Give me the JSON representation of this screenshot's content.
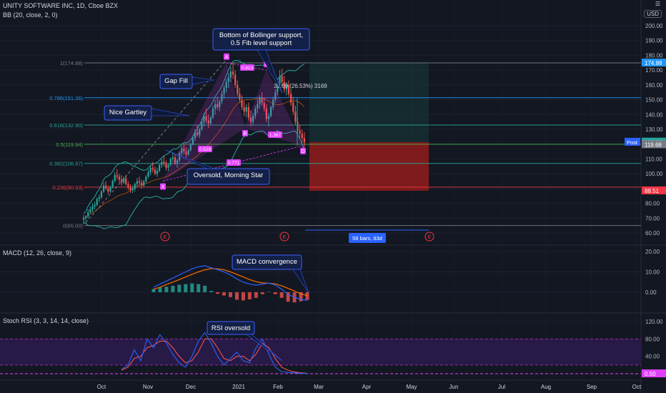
{
  "header": {
    "symbol_line": "UNITY SOFTWARE INC, 1D, Cboe BZX",
    "bb_label": "BB (20, close, 2, 0)",
    "currency": "USD",
    "macd_label": "MACD (12, 26, close, 9)",
    "rsi_label": "Stoch RSI (3, 3, 14, 14, close)"
  },
  "colors": {
    "background": "#131722",
    "grid": "#1e222d",
    "up": "#26a69a",
    "down": "#ef5350",
    "pattern_label": "#e040fb",
    "annotation_bg": "#132047",
    "annotation_border": "#3c5fff",
    "bb_line": "#26a69a",
    "macd_line": "#2962ff",
    "signal_line": "#ff6d00",
    "stoch_k": "#2962ff",
    "stoch_d": "#ef5350",
    "rsi_band": "#2a1b4a",
    "reward_box": "#163a3a",
    "risk_box": "#8b1c1c"
  },
  "chart_data": [
    {
      "type": "candlestick",
      "title": "UNITY SOFTWARE INC, 1D, Cboe BZX",
      "x_ticks": [
        "Oct",
        "Nov",
        "Dec",
        "2021",
        "Feb",
        "Mar",
        "Apr",
        "May",
        "Jun",
        "Jul",
        "Aug",
        "Sep",
        "Oct"
      ],
      "y_ticks": [
        60,
        70,
        80,
        90,
        100,
        110,
        120,
        130,
        140,
        150,
        160,
        170,
        180,
        190,
        200
      ],
      "ylim": [
        56,
        212
      ],
      "candles": [
        [
          69,
          72,
          66,
          70
        ],
        [
          70,
          72,
          68,
          71
        ],
        [
          71,
          76,
          70,
          74
        ],
        [
          74,
          78,
          73,
          76
        ],
        [
          76,
          80,
          74,
          78
        ],
        [
          78,
          81,
          76,
          79
        ],
        [
          79,
          84,
          78,
          83
        ],
        [
          83,
          86,
          81,
          84
        ],
        [
          84,
          89,
          83,
          88
        ],
        [
          88,
          94,
          87,
          92
        ],
        [
          92,
          95,
          89,
          90
        ],
        [
          90,
          92,
          86,
          88
        ],
        [
          88,
          92,
          87,
          91
        ],
        [
          91,
          96,
          90,
          95
        ],
        [
          95,
          101,
          94,
          99
        ],
        [
          99,
          103,
          96,
          98
        ],
        [
          98,
          100,
          94,
          96
        ],
        [
          96,
          99,
          92,
          94
        ],
        [
          94,
          98,
          93,
          97
        ],
        [
          97,
          99,
          92,
          93
        ],
        [
          93,
          95,
          89,
          91
        ],
        [
          91,
          93,
          87,
          89
        ],
        [
          89,
          92,
          87,
          90
        ],
        [
          90,
          94,
          88,
          93
        ],
        [
          93,
          97,
          91,
          95
        ],
        [
          95,
          98,
          92,
          94
        ],
        [
          94,
          96,
          90,
          92
        ],
        [
          92,
          96,
          91,
          95
        ],
        [
          95,
          99,
          94,
          98
        ],
        [
          98,
          103,
          97,
          101
        ],
        [
          101,
          106,
          99,
          104
        ],
        [
          104,
          108,
          101,
          103
        ],
        [
          103,
          105,
          99,
          100
        ],
        [
          100,
          104,
          98,
          102
        ],
        [
          102,
          107,
          101,
          106
        ],
        [
          106,
          110,
          104,
          108
        ],
        [
          108,
          112,
          105,
          107
        ],
        [
          107,
          109,
          102,
          104
        ],
        [
          104,
          107,
          102,
          106
        ],
        [
          106,
          111,
          105,
          110
        ],
        [
          110,
          114,
          108,
          111
        ],
        [
          111,
          113,
          106,
          107
        ],
        [
          107,
          110,
          104,
          109
        ],
        [
          109,
          115,
          108,
          114
        ],
        [
          114,
          119,
          112,
          117
        ],
        [
          117,
          120,
          113,
          115
        ],
        [
          115,
          118,
          111,
          113
        ],
        [
          113,
          117,
          112,
          116
        ],
        [
          116,
          121,
          115,
          120
        ],
        [
          120,
          126,
          119,
          124
        ],
        [
          124,
          130,
          122,
          128
        ],
        [
          128,
          133,
          125,
          126
        ],
        [
          126,
          131,
          124,
          130
        ],
        [
          130,
          137,
          129,
          135
        ],
        [
          135,
          141,
          132,
          139
        ],
        [
          139,
          144,
          134,
          136
        ],
        [
          136,
          140,
          131,
          134
        ],
        [
          134,
          139,
          133,
          138
        ],
        [
          138,
          146,
          137,
          144
        ],
        [
          144,
          150,
          140,
          147
        ],
        [
          147,
          152,
          143,
          145
        ],
        [
          145,
          150,
          142,
          149
        ],
        [
          149,
          156,
          147,
          154
        ],
        [
          154,
          160,
          151,
          158
        ],
        [
          158,
          164,
          155,
          162
        ],
        [
          162,
          168,
          158,
          165
        ],
        [
          165,
          172,
          162,
          169
        ],
        [
          169,
          175,
          164,
          167
        ],
        [
          167,
          170,
          158,
          160
        ],
        [
          160,
          163,
          152,
          154
        ],
        [
          154,
          158,
          148,
          150
        ],
        [
          150,
          153,
          143,
          145
        ],
        [
          145,
          149,
          139,
          142
        ],
        [
          142,
          147,
          138,
          145
        ],
        [
          145,
          148,
          136,
          138
        ],
        [
          138,
          143,
          132,
          135
        ],
        [
          135,
          141,
          133,
          139
        ],
        [
          139,
          146,
          137,
          144
        ],
        [
          144,
          150,
          141,
          147
        ],
        [
          147,
          153,
          144,
          151
        ],
        [
          151,
          155,
          146,
          148
        ],
        [
          148,
          151,
          142,
          144
        ],
        [
          144,
          147,
          135,
          137
        ],
        [
          137,
          141,
          132,
          139
        ],
        [
          139,
          146,
          138,
          145
        ],
        [
          145,
          152,
          143,
          150
        ],
        [
          150,
          157,
          148,
          155
        ],
        [
          155,
          163,
          153,
          161
        ],
        [
          161,
          170,
          158,
          166
        ],
        [
          166,
          171,
          159,
          162
        ],
        [
          162,
          166,
          155,
          157
        ],
        [
          157,
          162,
          153,
          160
        ],
        [
          160,
          163,
          152,
          154
        ],
        [
          154,
          157,
          146,
          148
        ],
        [
          148,
          152,
          140,
          142
        ],
        [
          142,
          146,
          133,
          135
        ],
        [
          135,
          138,
          126,
          129
        ],
        [
          129,
          133,
          124,
          127
        ],
        [
          127,
          130,
          121,
          124
        ],
        [
          124,
          128,
          118,
          121
        ]
      ],
      "bollinger_bands": {
        "length": 20,
        "source": "close",
        "mult": 2,
        "offset": 0
      },
      "fib_levels": [
        {
          "label": "1(174.88)",
          "price": 174.88
        },
        {
          "label": "0.786(151.36)",
          "price": 151.36
        },
        {
          "label": "0.618(132.90)",
          "price": 132.9
        },
        {
          "label": "0.5(119.94)",
          "price": 119.94
        },
        {
          "label": "0.382(106.97)",
          "price": 106.97
        },
        {
          "label": "0.236(90.93)",
          "price": 90.93
        },
        {
          "label": "0(65.00)",
          "price": 65.0
        }
      ],
      "harmonic_pattern": {
        "name": "Gartley",
        "points": [
          {
            "label": "X",
            "price": 95
          },
          {
            "label": "A",
            "price": 175
          },
          {
            "label": "B",
            "price": 131
          },
          {
            "label": "C",
            "price": 170
          },
          {
            "label": "D",
            "price": 119
          }
        ],
        "ratios": [
          "0.813",
          "0.529",
          "0.771",
          "1.367"
        ]
      },
      "price_labels": [
        {
          "text": "174.88",
          "price": 174.88
        },
        {
          "text": "121.40",
          "price": 121.4
        },
        {
          "text": "121.38",
          "price": 121.38,
          "tag": "Post"
        },
        {
          "text": "119.68",
          "price": 119.68
        },
        {
          "text": "88.51",
          "price": 88.51
        }
      ],
      "position_tool": {
        "entry": 121.4,
        "target": 174.88,
        "stop": 88.51,
        "measure_text": "31.69 (26.53%) 3169",
        "range_text": "58 bars, 83d"
      },
      "annotations": [
        "Bottom of Bollinger support,",
        "0.5 Fib level support",
        "Gap Fill",
        "Nice Gartley",
        "Oversold, Morning Star"
      ],
      "event_markers": [
        "E",
        "E",
        "E"
      ]
    },
    {
      "type": "line",
      "title": "MACD (12, 26, close, 9)",
      "y_ticks": [
        0,
        10,
        20
      ],
      "ylim": [
        -5,
        22
      ],
      "series": [
        {
          "name": "MACD",
          "values": [
            2.5,
            4,
            5.5,
            7,
            8.5,
            10,
            11.5,
            12.5,
            13,
            12,
            11,
            10,
            8.5,
            6.5,
            5,
            4,
            3.5,
            4,
            4.5,
            3.5,
            1.5,
            -1,
            -2.5,
            -3.5,
            -4
          ]
        },
        {
          "name": "Signal",
          "values": [
            1.5,
            2.5,
            3.8,
            5,
            6.2,
            7.5,
            8.8,
            10,
            11,
            11.6,
            11.5,
            11,
            10,
            8.8,
            7.5,
            6.2,
            5.2,
            4.6,
            4.4,
            4.1,
            3.2,
            1.9,
            0.6,
            -0.7,
            -1.7
          ]
        }
      ],
      "annotations": [
        "MACD convergence"
      ]
    },
    {
      "type": "line",
      "title": "Stoch RSI (3, 3, 14, 14, close)",
      "y_ticks": [
        0,
        40,
        80,
        120
      ],
      "ylim": [
        -5,
        130
      ],
      "band": [
        20,
        80
      ],
      "last_value": "0.50",
      "series": [
        {
          "name": "K",
          "values": [
            10,
            20,
            55,
            30,
            80,
            60,
            90,
            70,
            45,
            25,
            15,
            40,
            75,
            95,
            70,
            40,
            20,
            35,
            50,
            30,
            25,
            60,
            80,
            45,
            15,
            5,
            3,
            2,
            1,
            0.5
          ]
        },
        {
          "name": "D",
          "values": [
            8,
            15,
            35,
            40,
            60,
            65,
            75,
            75,
            60,
            40,
            25,
            30,
            50,
            80,
            80,
            60,
            35,
            30,
            40,
            40,
            30,
            45,
            70,
            60,
            35,
            15,
            8,
            4,
            2,
            1
          ]
        }
      ],
      "annotations": [
        "RSI oversold"
      ]
    }
  ]
}
